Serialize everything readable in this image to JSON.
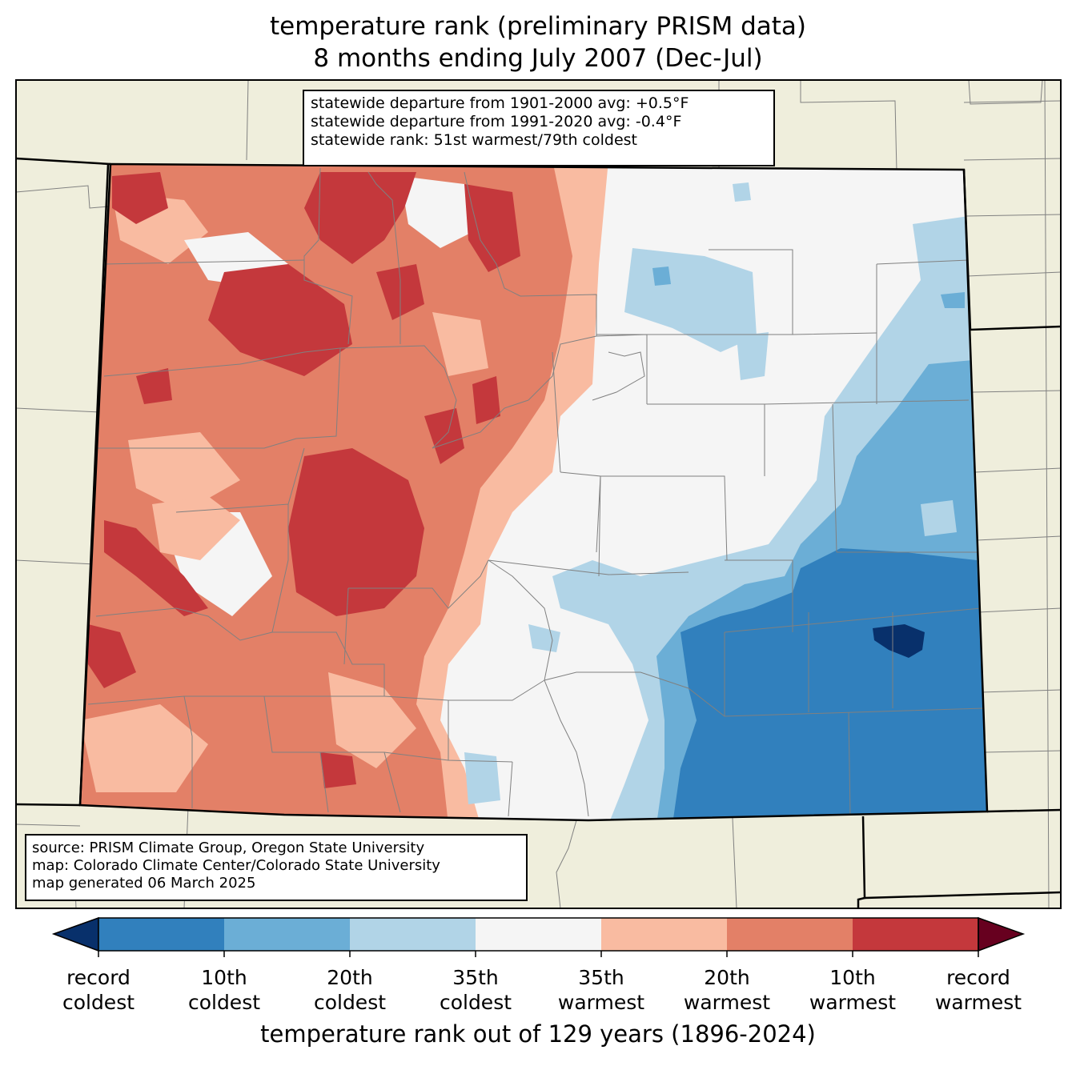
{
  "title": {
    "line1": "temperature rank (preliminary PRISM data)",
    "line2": "8 months ending July 2007 (Dec-Jul)"
  },
  "stats": {
    "line1": "statewide departure from 1901-2000 avg: +0.5°F",
    "line2": "statewide departure from 1991-2020 avg: -0.4°F",
    "line3": "statewide rank: 51st warmest/79th coldest"
  },
  "source": {
    "line1": "source: PRISM Climate Group, Oregon State University",
    "line2": "map: Colorado Climate Center/Colorado State University",
    "line3": "map generated 06 March 2025"
  },
  "colorbar": {
    "label": "temperature rank out of 129 years (1896-2024)",
    "colors": {
      "below_record_coldest": "#08306b",
      "record_to_10th_coldest": "#3180bd",
      "10th_to_20th_coldest": "#6baed6",
      "20th_to_35th_coldest": "#b1d4e7",
      "near_normal": "#f5f5f5",
      "35th_to_20th_warmest": "#f9bba1",
      "20th_to_10th_warmest": "#e38067",
      "10th_to_record_warmest": "#c4383c",
      "above_record_warmest": "#67001f"
    },
    "ticks": [
      {
        "line1": "record",
        "line2": "coldest"
      },
      {
        "line1": "10th",
        "line2": "coldest"
      },
      {
        "line1": "20th",
        "line2": "coldest"
      },
      {
        "line1": "35th",
        "line2": "coldest"
      },
      {
        "line1": "35th",
        "line2": "warmest"
      },
      {
        "line1": "20th",
        "line2": "warmest"
      },
      {
        "line1": "10th",
        "line2": "warmest"
      },
      {
        "line1": "record",
        "line2": "warmest"
      }
    ]
  },
  "map_colors": {
    "land_outside": "#efeedc",
    "county_lines": "#808080",
    "state_lines": "#000000"
  }
}
